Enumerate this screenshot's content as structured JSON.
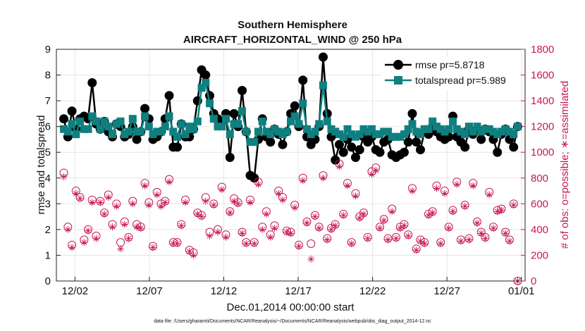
{
  "chart_data": {
    "type": "line",
    "title": [
      "Southern Hemisphere",
      "AIRCRAFT_HORIZONTAL_WIND @ 250 hPa"
    ],
    "xlabel": "Dec.01,2014 00:00:00 start",
    "ylabel_left": "rmse and totalspread",
    "ylabel_right": "# of obs: o=possible; ∗=assimilated",
    "footnote": "data file: /Users/gharamti/Documents/NCAR/Reanalysis/~/Documents/NCAR/Reanalysis/webpub/obs_diag_output_2014-12.nc",
    "xlim": [
      0.75,
      32.25
    ],
    "ylim_left": [
      0,
      9
    ],
    "ylim_right": [
      0,
      1800
    ],
    "x_ticks": [
      {
        "x": 2,
        "label": "12/02"
      },
      {
        "x": 7,
        "label": "12/07"
      },
      {
        "x": 12,
        "label": "12/12"
      },
      {
        "x": 17,
        "label": "12/17"
      },
      {
        "x": 22,
        "label": "12/22"
      },
      {
        "x": 27,
        "label": "12/27"
      },
      {
        "x": 32,
        "label": "01/01"
      }
    ],
    "y_ticks_left": [
      "0",
      "1",
      "2",
      "3",
      "4",
      "5",
      "6",
      "7",
      "8",
      "9"
    ],
    "y_ticks_right": [
      "0",
      "200",
      "400",
      "600",
      "800",
      "1000",
      "1200",
      "1400",
      "1600",
      "1800"
    ],
    "grid": true,
    "legend_position": "top-right",
    "colors": {
      "rmse": "#000000",
      "totalspread": "#0f7f7f",
      "obs": "#c8194e"
    },
    "series": [
      {
        "name": "rmse pr=5.8718",
        "axis": "left",
        "marker": "circle",
        "values": [
          6.3,
          5.6,
          6.6,
          5.9,
          6.3,
          6.4,
          6.3,
          7.7,
          6.1,
          5.9,
          6.2,
          5.8,
          5.6,
          6.1,
          6.0,
          5.6,
          5.7,
          6.0,
          5.5,
          5.8,
          6.7,
          6.3,
          5.5,
          5.6,
          5.8,
          6.3,
          7.2,
          5.2,
          5.2,
          6.1,
          5.6,
          5.6,
          5.9,
          7.0,
          8.2,
          8.0,
          7.2,
          6.5,
          6.3,
          6.2,
          6.5,
          4.8,
          6.5,
          6.0,
          7.4,
          5.8,
          4.1,
          4.0,
          5.5,
          6.3,
          5.6,
          5.4,
          5.9,
          5.7,
          5.3,
          5.8,
          6.5,
          6.8,
          6.0,
          7.8,
          5.6,
          5.3,
          5.5,
          6.0,
          8.7,
          6.5,
          5.6,
          4.7,
          5.3,
          5.0,
          5.5,
          5.2,
          4.8,
          5.1,
          5.6,
          5.4,
          5.6,
          5.1,
          5.0,
          5.4,
          5.5,
          4.9,
          4.8,
          4.9,
          5.0,
          5.4,
          6.5,
          5.4,
          5.1,
          5.8,
          5.7,
          6.0,
          5.8,
          5.6,
          5.5,
          5.6,
          6.4,
          5.6,
          5.4,
          5.2,
          5.9,
          5.7,
          5.9,
          5.5,
          5.9,
          5.8,
          5.5,
          5.0,
          5.7,
          5.9,
          5.5,
          5.2,
          6.0
        ]
      },
      {
        "name": "totalspread pr=5.989",
        "axis": "left",
        "marker": "square",
        "values": [
          5.9,
          5.8,
          6.1,
          5.7,
          6.2,
          5.9,
          5.9,
          6.4,
          6.2,
          5.9,
          6.2,
          6.0,
          5.7,
          6.1,
          6.2,
          5.7,
          5.8,
          6.3,
          5.8,
          5.8,
          6.4,
          6.0,
          5.7,
          5.8,
          5.8,
          6.0,
          6.4,
          5.8,
          5.6,
          6.1,
          5.7,
          6.0,
          5.9,
          6.2,
          7.5,
          7.7,
          6.9,
          6.3,
          6.0,
          6.0,
          6.3,
          5.7,
          6.1,
          6.1,
          6.6,
          5.8,
          5.4,
          5.4,
          5.8,
          6.2,
          5.8,
          5.7,
          5.9,
          5.8,
          5.7,
          5.8,
          6.2,
          6.4,
          6.1,
          6.9,
          5.9,
          5.7,
          5.8,
          6.1,
          7.6,
          6.2,
          5.9,
          5.8,
          5.7,
          5.6,
          5.9,
          5.7,
          5.6,
          5.7,
          5.9,
          5.8,
          5.9,
          5.7,
          5.7,
          5.8,
          5.8,
          5.6,
          5.6,
          5.6,
          5.7,
          5.9,
          6.1,
          5.8,
          5.7,
          5.9,
          5.9,
          6.2,
          6.0,
          5.9,
          5.8,
          5.9,
          6.2,
          5.9,
          5.8,
          5.7,
          6.0,
          5.8,
          6.0,
          5.8,
          5.9,
          5.9,
          5.8,
          5.7,
          5.8,
          5.9,
          5.8,
          5.7,
          6.0
        ]
      },
      {
        "name": "possible",
        "axis": "right",
        "marker": "open-circle",
        "values": [
          840,
          420,
          280,
          700,
          650,
          320,
          400,
          630,
          350,
          620,
          530,
          670,
          440,
          600,
          300,
          460,
          340,
          620,
          440,
          420,
          760,
          610,
          270,
          690,
          600,
          620,
          790,
          300,
          300,
          440,
          630,
          240,
          220,
          530,
          510,
          650,
          380,
          600,
          400,
          730,
          360,
          540,
          640,
          610,
          380,
          300,
          630,
          300,
          770,
          420,
          540,
          360,
          430,
          700,
          650,
          390,
          380,
          590,
          280,
          800,
          460,
          290,
          510,
          420,
          820,
          330,
          410,
          440,
          910,
          520,
          760,
          300,
          680,
          500,
          530,
          340,
          850,
          880,
          420,
          480,
          330,
          560,
          340,
          420,
          440,
          360,
          720,
          250,
          320,
          300,
          520,
          540,
          740,
          300,
          700,
          420,
          550,
          770,
          320,
          590,
          330,
          760,
          460,
          380,
          340,
          690,
          420,
          550,
          560,
          380,
          320,
          600,
          0
        ]
      },
      {
        "name": "assimilated",
        "axis": "right",
        "marker": "asterisk",
        "values": [
          810,
          400,
          260,
          680,
          640,
          300,
          390,
          610,
          330,
          610,
          520,
          650,
          420,
          580,
          250,
          440,
          330,
          600,
          420,
          410,
          740,
          590,
          260,
          670,
          580,
          610,
          770,
          290,
          290,
          430,
          610,
          230,
          200,
          520,
          500,
          620,
          350,
          590,
          380,
          710,
          340,
          530,
          620,
          600,
          370,
          290,
          610,
          290,
          750,
          400,
          520,
          340,
          410,
          680,
          630,
          380,
          370,
          570,
          270,
          780,
          450,
          170,
          500,
          410,
          800,
          320,
          400,
          430,
          890,
          510,
          740,
          290,
          660,
          490,
          520,
          330,
          830,
          860,
          410,
          470,
          320,
          540,
          330,
          410,
          430,
          350,
          700,
          240,
          310,
          290,
          510,
          530,
          720,
          290,
          680,
          410,
          540,
          750,
          310,
          580,
          320,
          740,
          450,
          370,
          330,
          670,
          410,
          540,
          550,
          370,
          310,
          590,
          0
        ]
      }
    ]
  }
}
